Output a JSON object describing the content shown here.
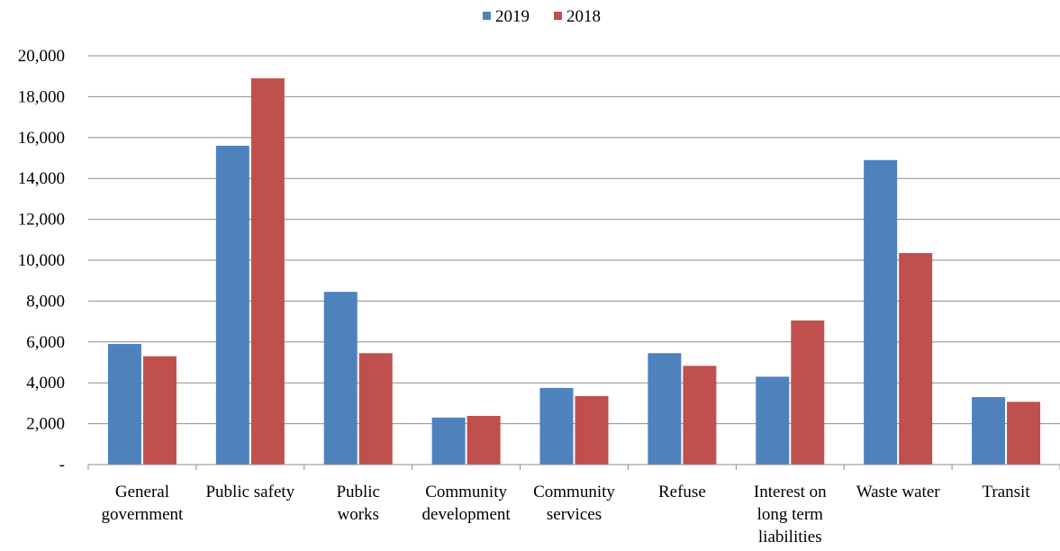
{
  "chart_data": {
    "type": "bar",
    "title": "",
    "xlabel": "",
    "ylabel": "",
    "ylim": [
      0,
      20000
    ],
    "yticks": [
      {
        "value": 0,
        "label": "-"
      },
      {
        "value": 2000,
        "label": "2,000"
      },
      {
        "value": 4000,
        "label": "4,000"
      },
      {
        "value": 6000,
        "label": "6,000"
      },
      {
        "value": 8000,
        "label": "8,000"
      },
      {
        "value": 10000,
        "label": "10,000"
      },
      {
        "value": 12000,
        "label": "12,000"
      },
      {
        "value": 14000,
        "label": "14,000"
      },
      {
        "value": 16000,
        "label": "16,000"
      },
      {
        "value": 18000,
        "label": "18,000"
      },
      {
        "value": 20000,
        "label": "20,000"
      }
    ],
    "grid": true,
    "legend_position": "top",
    "categories": [
      [
        "General",
        "government"
      ],
      [
        "Public safety"
      ],
      [
        "Public",
        "works"
      ],
      [
        "Community",
        "development"
      ],
      [
        "Community",
        "services"
      ],
      [
        "Refuse"
      ],
      [
        "Interest on",
        "long term",
        "liabilities"
      ],
      [
        "Waste water"
      ],
      [
        "Transit"
      ]
    ],
    "series": [
      {
        "name": "2019",
        "color": "#4F81BD",
        "values": [
          5900,
          15600,
          8450,
          2300,
          3750,
          5450,
          4300,
          14900,
          3300
        ]
      },
      {
        "name": "2018",
        "color": "#C0504D",
        "values": [
          5300,
          18900,
          5450,
          2380,
          3350,
          4830,
          7050,
          10350,
          3070
        ]
      }
    ]
  }
}
